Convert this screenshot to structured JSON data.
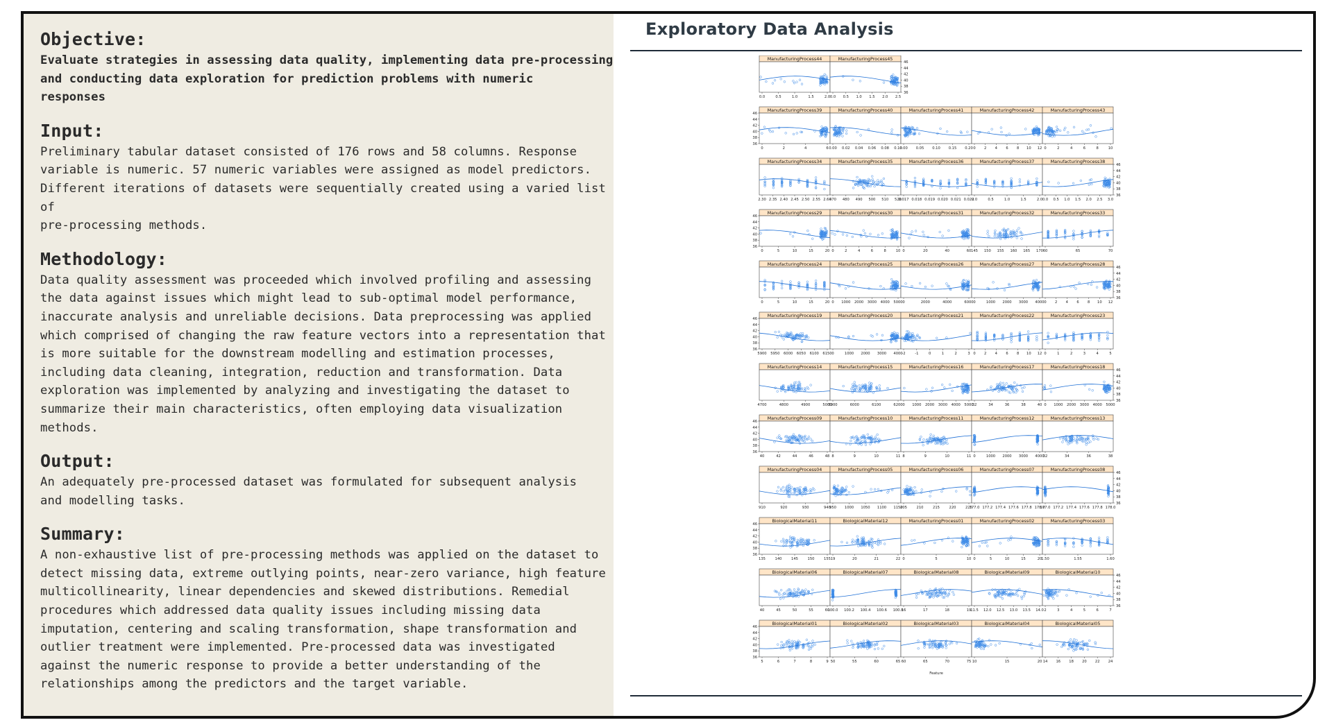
{
  "sections": {
    "objective": {
      "title": "Objective:",
      "body": "Evaluate strategies in assessing data quality, implementing data pre-processing\nand conducting data exploration for prediction problems with numeric\nresponses"
    },
    "input": {
      "title": "Input:",
      "body": "Preliminary tabular dataset consisted of 176 rows and 58 columns. Response\nvariable is numeric. 57 numeric variables were assigned as model predictors.\nDifferent iterations of datasets were sequentially created using a varied list of\npre-processing methods."
    },
    "methodology": {
      "title": "Methodology:",
      "body": "Data quality assessment was proceeded which involved profiling and assessing\nthe data against issues which might lead to sub-optimal model performance,\ninaccurate analysis and unreliable decisions. Data preprocessing was applied\nwhich comprised of changing the raw feature vectors into a representation that\nis more suitable for the downstream modelling and estimation processes,\nincluding data cleaning, integration, reduction and transformation. Data\nexploration was implemented by analyzing and investigating the dataset to\nsummarize their main characteristics, often employing data visualization\nmethods."
    },
    "output": {
      "title": "Output:",
      "body": "An adequately pre-processed dataset was formulated for subsequent analysis\nand modelling tasks."
    },
    "summary": {
      "title": "Summary:",
      "body": "A non-exhaustive list of pre-processing methods was applied on the dataset to\ndetect missing data, extreme outlying points, near-zero variance, high feature\nmulticollinearity, linear dependencies and skewed distributions. Remedial\nprocedures which addressed data quality issues including missing data\nimputation, centering and scaling transformation, shape transformation and\noutlier treatment were implemented. Pre-processed data was investigated\nagainst the numeric response to provide a better understanding of the\nrelationships among the predictors and the target variable."
    }
  },
  "eda_title": "Exploratory Data Analysis",
  "colors": {
    "panel_header": "#ffe5c7",
    "point": "#3d8be8",
    "line": "#1f70d6"
  },
  "chart_data": {
    "type": "scatter",
    "xlabel": "Feature",
    "ylim": [
      36,
      46
    ],
    "y_ticks": [
      "36",
      "38",
      "40",
      "42",
      "44",
      "46"
    ],
    "panels": [
      [
        {
          "name": "ManufacturingProcess44",
          "xticks": [
            "0.0",
            "0.5",
            "1.0",
            "1.5",
            "2.0"
          ],
          "pattern": "right_cluster"
        },
        {
          "name": "ManufacturingProcess45",
          "xticks": [
            "0.0",
            "0.5",
            "1.0",
            "1.5",
            "2.0",
            "2.5"
          ],
          "pattern": "right_cluster"
        }
      ],
      [
        {
          "name": "ManufacturingProcess39",
          "xticks": [
            "0",
            "2",
            "4",
            "6"
          ],
          "pattern": "right_cluster"
        },
        {
          "name": "ManufacturingProcess40",
          "xticks": [
            "0.00",
            "0.02",
            "0.04",
            "0.06",
            "0.08",
            "0.10"
          ],
          "pattern": "left_cluster"
        },
        {
          "name": "ManufacturingProcess41",
          "xticks": [
            "0.00",
            "0.05",
            "0.10",
            "0.15",
            "0.20"
          ],
          "pattern": "left_cluster"
        },
        {
          "name": "ManufacturingProcess42",
          "xticks": [
            "0",
            "2",
            "4",
            "6",
            "8",
            "10",
            "12"
          ],
          "pattern": "right_cluster"
        },
        {
          "name": "ManufacturingProcess43",
          "xticks": [
            "0",
            "2",
            "4",
            "6",
            "8",
            "10"
          ],
          "pattern": "left_cluster"
        }
      ],
      [
        {
          "name": "ManufacturingProcess34",
          "xticks": [
            "2.30",
            "2.35",
            "2.40",
            "2.45",
            "2.50",
            "2.55",
            "2.60"
          ],
          "pattern": "discrete"
        },
        {
          "name": "ManufacturingProcess35",
          "xticks": [
            "470",
            "480",
            "490",
            "500",
            "510",
            "520"
          ],
          "pattern": "cloud"
        },
        {
          "name": "ManufacturingProcess36",
          "xticks": [
            "0.017",
            "0.018",
            "0.019",
            "0.020",
            "0.021",
            "0.022"
          ],
          "pattern": "discrete"
        },
        {
          "name": "ManufacturingProcess37",
          "xticks": [
            "0.0",
            "0.5",
            "1.0",
            "1.5",
            "2.0"
          ],
          "pattern": "discrete"
        },
        {
          "name": "ManufacturingProcess38",
          "xticks": [
            "0.0",
            "0.5",
            "1.0",
            "1.5",
            "2.0",
            "2.5",
            "3.0"
          ],
          "pattern": "right_cluster"
        }
      ],
      [
        {
          "name": "ManufacturingProcess29",
          "xticks": [
            "0",
            "5",
            "10",
            "15",
            "20"
          ],
          "pattern": "right_cluster"
        },
        {
          "name": "ManufacturingProcess30",
          "xticks": [
            "0",
            "2",
            "4",
            "6",
            "8",
            "10"
          ],
          "pattern": "right_cluster"
        },
        {
          "name": "ManufacturingProcess31",
          "xticks": [
            "0",
            "20",
            "40",
            "60"
          ],
          "pattern": "right_cluster"
        },
        {
          "name": "ManufacturingProcess32",
          "xticks": [
            "145",
            "150",
            "155",
            "160",
            "165",
            "170"
          ],
          "pattern": "cloud"
        },
        {
          "name": "ManufacturingProcess33",
          "xticks": [
            "60",
            "65",
            "70"
          ],
          "pattern": "discrete"
        }
      ],
      [
        {
          "name": "ManufacturingProcess24",
          "xticks": [
            "0",
            "5",
            "10",
            "15",
            "20"
          ],
          "pattern": "discrete"
        },
        {
          "name": "ManufacturingProcess25",
          "xticks": [
            "0",
            "1000",
            "2000",
            "3000",
            "4000",
            "5000"
          ],
          "pattern": "right_cluster"
        },
        {
          "name": "ManufacturingProcess26",
          "xticks": [
            "0",
            "2000",
            "4000",
            "6000"
          ],
          "pattern": "right_cluster"
        },
        {
          "name": "ManufacturingProcess27",
          "xticks": [
            "0",
            "1000",
            "2000",
            "3000",
            "4000"
          ],
          "pattern": "right_cluster"
        },
        {
          "name": "ManufacturingProcess28",
          "xticks": [
            "0",
            "2",
            "4",
            "6",
            "8",
            "10",
            "12"
          ],
          "pattern": "right_cluster"
        }
      ],
      [
        {
          "name": "ManufacturingProcess19",
          "xticks": [
            "5900",
            "5950",
            "6000",
            "6050",
            "6100",
            "6150"
          ],
          "pattern": "cloud"
        },
        {
          "name": "ManufacturingProcess20",
          "xticks": [
            "0",
            "1000",
            "2000",
            "3000",
            "4000"
          ],
          "pattern": "right_cluster"
        },
        {
          "name": "ManufacturingProcess21",
          "xticks": [
            "-2",
            "-1",
            "0",
            "1",
            "2",
            "3"
          ],
          "pattern": "left_cluster"
        },
        {
          "name": "ManufacturingProcess22",
          "xticks": [
            "0",
            "2",
            "4",
            "6",
            "8",
            "10",
            "12"
          ],
          "pattern": "discrete"
        },
        {
          "name": "ManufacturingProcess23",
          "xticks": [
            "0",
            "1",
            "2",
            "3",
            "4",
            "5"
          ],
          "pattern": "discrete"
        }
      ],
      [
        {
          "name": "ManufacturingProcess14",
          "xticks": [
            "4700",
            "4800",
            "4900",
            "5000"
          ],
          "pattern": "cloud"
        },
        {
          "name": "ManufacturingProcess15",
          "xticks": [
            "5900",
            "6000",
            "6100",
            "6200"
          ],
          "pattern": "cloud"
        },
        {
          "name": "ManufacturingProcess16",
          "xticks": [
            "0",
            "1000",
            "2000",
            "3000",
            "4000",
            "5000"
          ],
          "pattern": "right_cluster"
        },
        {
          "name": "ManufacturingProcess17",
          "xticks": [
            "32",
            "34",
            "36",
            "38",
            "40"
          ],
          "pattern": "cloud"
        },
        {
          "name": "ManufacturingProcess18",
          "xticks": [
            "0",
            "1000",
            "2000",
            "3000",
            "4000",
            "5000"
          ],
          "pattern": "right_cluster"
        }
      ],
      [
        {
          "name": "ManufacturingProcess09",
          "xticks": [
            "40",
            "42",
            "44",
            "46",
            "48"
          ],
          "pattern": "cloud"
        },
        {
          "name": "ManufacturingProcess10",
          "xticks": [
            "8",
            "9",
            "10",
            "11"
          ],
          "pattern": "cloud"
        },
        {
          "name": "ManufacturingProcess11",
          "xticks": [
            "8",
            "9",
            "10",
            "11"
          ],
          "pattern": "cloud"
        },
        {
          "name": "ManufacturingProcess12",
          "xticks": [
            "0",
            "1000",
            "2000",
            "3000",
            "4000"
          ],
          "pattern": "two_cols"
        },
        {
          "name": "ManufacturingProcess13",
          "xticks": [
            "32",
            "34",
            "36",
            "38"
          ],
          "pattern": "cloud"
        }
      ],
      [
        {
          "name": "ManufacturingProcess04",
          "xticks": [
            "910",
            "920",
            "930",
            "940"
          ],
          "pattern": "cloud"
        },
        {
          "name": "ManufacturingProcess05",
          "xticks": [
            "950",
            "1000",
            "1050",
            "1100",
            "1150"
          ],
          "pattern": "left_cluster"
        },
        {
          "name": "ManufacturingProcess06",
          "xticks": [
            "205",
            "210",
            "215",
            "220",
            "225"
          ],
          "pattern": "left_cluster"
        },
        {
          "name": "ManufacturingProcess07",
          "xticks": [
            "177.0",
            "177.2",
            "177.4",
            "177.6",
            "177.8",
            "178.0"
          ],
          "pattern": "two_cols"
        },
        {
          "name": "ManufacturingProcess08",
          "xticks": [
            "177.0",
            "177.2",
            "177.4",
            "177.6",
            "177.8",
            "178.0"
          ],
          "pattern": "two_cols"
        }
      ],
      [
        {
          "name": "BiologicalMaterial11",
          "xticks": [
            "135",
            "140",
            "145",
            "150",
            "155"
          ],
          "pattern": "cloud"
        },
        {
          "name": "BiologicalMaterial12",
          "xticks": [
            "19",
            "20",
            "21",
            "22"
          ],
          "pattern": "cloud"
        },
        {
          "name": "ManufacturingProcess01",
          "xticks": [
            "0",
            "5",
            "10"
          ],
          "pattern": "right_cluster"
        },
        {
          "name": "ManufacturingProcess02",
          "xticks": [
            "0",
            "5",
            "10",
            "15",
            "20"
          ],
          "pattern": "right_cluster"
        },
        {
          "name": "ManufacturingProcess03",
          "xticks": [
            "1.50",
            "1.55",
            "1.60"
          ],
          "pattern": "discrete"
        }
      ],
      [
        {
          "name": "BiologicalMaterial06",
          "xticks": [
            "40",
            "45",
            "50",
            "55",
            "60"
          ],
          "pattern": "cloud"
        },
        {
          "name": "BiologicalMaterial07",
          "xticks": [
            "100.0",
            "100.2",
            "100.4",
            "100.6",
            "100.8"
          ],
          "pattern": "two_cols"
        },
        {
          "name": "BiologicalMaterial08",
          "xticks": [
            "16",
            "17",
            "18",
            "19"
          ],
          "pattern": "cloud"
        },
        {
          "name": "BiologicalMaterial09",
          "xticks": [
            "11.5",
            "12.0",
            "12.5",
            "13.0",
            "13.5",
            "14.0"
          ],
          "pattern": "cloud"
        },
        {
          "name": "BiologicalMaterial10",
          "xticks": [
            "2",
            "3",
            "4",
            "5",
            "6",
            "7"
          ],
          "pattern": "left_cluster"
        }
      ],
      [
        {
          "name": "BiologicalMaterial01",
          "xticks": [
            "5",
            "6",
            "7",
            "8",
            "9"
          ],
          "pattern": "cloud"
        },
        {
          "name": "BiologicalMaterial02",
          "xticks": [
            "50",
            "55",
            "60",
            "65"
          ],
          "pattern": "cloud"
        },
        {
          "name": "BiologicalMaterial03",
          "xticks": [
            "60",
            "65",
            "70",
            "75"
          ],
          "pattern": "cloud"
        },
        {
          "name": "BiologicalMaterial04",
          "xticks": [
            "10",
            "15",
            "20"
          ],
          "pattern": "left_cluster"
        },
        {
          "name": "BiologicalMaterial05",
          "xticks": [
            "14",
            "16",
            "18",
            "20",
            "22",
            "24"
          ],
          "pattern": "cloud"
        }
      ]
    ]
  }
}
